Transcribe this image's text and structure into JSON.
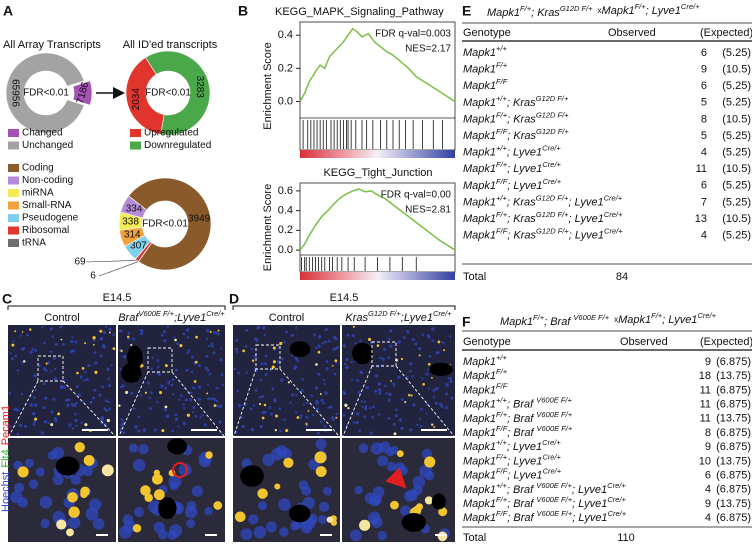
{
  "panel_labels": [
    "A",
    "B",
    "C",
    "D",
    "E",
    "F"
  ],
  "chart_data": [
    {
      "type": "pie",
      "title": "All Array Transcripts",
      "center_label": "FDR<0.01",
      "categories": [
        "Changed",
        "Unchanged"
      ],
      "values": [
        7186,
        65956
      ],
      "colors": [
        "#a552b5",
        "#a3a3a3"
      ]
    },
    {
      "type": "pie",
      "title": "All ID'ed transcripts",
      "center_label": "FDR<0.01",
      "categories": [
        "Upregulated",
        "Downregulated"
      ],
      "values": [
        2034,
        3283
      ],
      "colors": [
        "#e0342c",
        "#4aa84a"
      ]
    },
    {
      "type": "pie",
      "center_label": "FDR<0.01",
      "categories": [
        "Coding",
        "Non-coding",
        "miRNA",
        "Small-RNA",
        "Pseudogene",
        "Ribosomal",
        "tRNA"
      ],
      "values": [
        3949,
        334,
        338,
        314,
        307,
        69,
        6
      ],
      "colors": [
        "#8b5a2b",
        "#b58ad6",
        "#f3ea58",
        "#f2a23a",
        "#7ed0ec",
        "#e2372f",
        "#6d6d6d"
      ]
    },
    {
      "type": "line",
      "title": "KEGG_MAPK_Signaling_Pathway",
      "y_label": "Enrichment Score",
      "annotations": [
        "FDR q-val=0.003",
        "NES=2.17"
      ],
      "x": [
        0,
        0.03,
        0.06,
        0.1,
        0.13,
        0.16,
        0.19,
        0.22,
        0.25,
        0.28,
        0.31,
        0.34,
        0.37,
        0.4,
        0.44,
        0.48,
        0.52,
        0.56,
        0.6,
        0.65,
        0.7,
        0.75,
        0.8,
        0.85,
        0.9,
        0.95,
        1
      ],
      "values": [
        0,
        0.05,
        0.12,
        0.18,
        0.22,
        0.2,
        0.27,
        0.3,
        0.33,
        0.36,
        0.4,
        0.44,
        0.42,
        0.39,
        0.41,
        0.36,
        0.33,
        0.3,
        0.28,
        0.24,
        0.2,
        0.15,
        0.12,
        0.09,
        0.06,
        0.03,
        0
      ],
      "color": "#78c043",
      "hits": [
        0.02,
        0.05,
        0.07,
        0.09,
        0.11,
        0.13,
        0.15,
        0.17,
        0.2,
        0.22,
        0.24,
        0.26,
        0.28,
        0.3,
        0.31,
        0.33,
        0.36,
        0.4,
        0.43,
        0.47,
        0.52,
        0.56,
        0.6,
        0.64,
        0.68,
        0.73,
        0.79,
        0.86,
        0.92
      ],
      "xlim": [
        0,
        1
      ],
      "ylim": [
        -0.1,
        0.48
      ],
      "yticks": [
        {
          "value": 0,
          "label": "0.0"
        },
        0.2,
        0.4
      ]
    },
    {
      "type": "line",
      "title": "KEGG_Tight_Junction",
      "y_label": "Enrichment Score",
      "annotations": [
        "FDR q-val=0.00",
        "NES=2.81"
      ],
      "x": [
        0,
        0.03,
        0.06,
        0.1,
        0.14,
        0.18,
        0.22,
        0.26,
        0.3,
        0.34,
        0.38,
        0.42,
        0.46,
        0.5,
        0.55,
        0.6,
        0.65,
        0.7,
        0.75,
        0.8,
        0.85,
        0.9,
        0.95,
        1
      ],
      "values": [
        0,
        0.06,
        0.15,
        0.25,
        0.34,
        0.4,
        0.47,
        0.53,
        0.57,
        0.6,
        0.62,
        0.59,
        0.6,
        0.56,
        0.52,
        0.46,
        0.4,
        0.34,
        0.28,
        0.22,
        0.16,
        0.1,
        0.05,
        0
      ],
      "color": "#78c043",
      "hits": [
        0.01,
        0.03,
        0.04,
        0.06,
        0.08,
        0.1,
        0.12,
        0.14,
        0.16,
        0.19,
        0.21,
        0.24,
        0.27,
        0.31,
        0.35,
        0.42,
        0.5,
        0.58,
        0.66,
        0.75
      ],
      "xlim": [
        0,
        1
      ],
      "ylim": [
        -0.05,
        0.68
      ],
      "yticks": [
        {
          "value": 0,
          "label": "0.0"
        },
        0.2,
        0.4,
        0.6
      ]
    }
  ],
  "image_panels": [
    {
      "stage": "E14.5",
      "columns": [
        [
          [
            "Control"
          ]
        ],
        [
          [
            "Braf",
            "V600E F/+"
          ],
          [
            ";Lyve1",
            "Cre/+"
          ]
        ]
      ]
    },
    {
      "stage": "E14.5",
      "columns": [
        [
          [
            "Control"
          ]
        ],
        [
          [
            "Kras",
            "G12D F/+"
          ],
          [
            ";Lyve1",
            "Cre/+"
          ]
        ]
      ]
    }
  ],
  "stain_label": [
    {
      "text": "Hoechst",
      "color": "#3344dd"
    },
    {
      "text": "Flt4",
      "color": "#33aa33"
    },
    {
      "text": "Pecam1",
      "color": "#dd2222"
    }
  ],
  "tables": [
    {
      "cross": {
        "female": [
          [
            "Mapk1",
            "F/+"
          ],
          [
            "; Kras",
            "G12D F/+"
          ]
        ],
        "symbol": "x",
        "male": [
          [
            "Mapk1",
            "F/+"
          ],
          [
            "; Lyve1",
            "Cre/+"
          ]
        ]
      },
      "columns": [
        "Genotype",
        "Observed",
        "(Expected)"
      ],
      "rows": [
        {
          "genotype": [
            [
              "Mapk1",
              "+/+"
            ]
          ],
          "observed": 6,
          "expected": "(5.25)"
        },
        {
          "genotype": [
            [
              "Mapk1",
              "F/+"
            ]
          ],
          "observed": 9,
          "expected": "(10.5)"
        },
        {
          "genotype": [
            [
              "Mapk1",
              "F/F"
            ]
          ],
          "observed": 6,
          "expected": "(5.25)"
        },
        {
          "genotype": [
            [
              "Mapk1",
              "+/+"
            ],
            [
              "; Kras",
              "G12D F/+"
            ]
          ],
          "observed": 5,
          "expected": "(5.25)"
        },
        {
          "genotype": [
            [
              "Mapk1",
              "F/+"
            ],
            [
              "; Kras",
              "G12D F/+"
            ]
          ],
          "observed": 8,
          "expected": "(10.5)"
        },
        {
          "genotype": [
            [
              "Mapk1",
              "F/F"
            ],
            [
              "; Kras",
              "G12D F/+"
            ]
          ],
          "observed": 5,
          "expected": "(5.25)"
        },
        {
          "genotype": [
            [
              "Mapk1",
              "+/+"
            ],
            [
              "; Lyve1",
              "Cre/+"
            ]
          ],
          "observed": 4,
          "expected": "(5.25)"
        },
        {
          "genotype": [
            [
              "Mapk1",
              "F/+"
            ],
            [
              "; Lyve1",
              "Cre/+"
            ]
          ],
          "observed": 11,
          "expected": "(10.5)"
        },
        {
          "genotype": [
            [
              "Mapk1",
              "F/F"
            ],
            [
              "; Lyve1",
              "Cre/+"
            ]
          ],
          "observed": 6,
          "expected": "(5.25)"
        },
        {
          "genotype": [
            [
              "Mapk1",
              "+/+"
            ],
            [
              "; Kras",
              "G12D F/+"
            ],
            [
              "; Lyve1",
              "Cre/+"
            ]
          ],
          "observed": 7,
          "expected": "(5.25)"
        },
        {
          "genotype": [
            [
              "Mapk1",
              "F/+"
            ],
            [
              "; Kras",
              "G12D F/+"
            ],
            [
              "; Lyve1",
              "Cre/+"
            ]
          ],
          "observed": 13,
          "expected": "(10.5)"
        },
        {
          "genotype": [
            [
              "Mapk1",
              "F/F"
            ],
            [
              "; Kras",
              "G12D F/+"
            ],
            [
              "; Lyve1",
              "Cre/+"
            ]
          ],
          "observed": 4,
          "expected": "(5.25)"
        }
      ],
      "total": {
        "label": "Total",
        "observed": 84
      }
    },
    {
      "cross": {
        "female": [
          [
            "Mapk1",
            "F/+"
          ],
          [
            "; Braf ",
            "V600E F/+"
          ]
        ],
        "symbol": "x",
        "male": [
          [
            "Mapk1",
            "F/+"
          ],
          [
            "; Lyve1",
            "Cre/+"
          ]
        ]
      },
      "columns": [
        "Genotype",
        "Observed",
        "(Expected)"
      ],
      "rows": [
        {
          "genotype": [
            [
              "Mapk1",
              "+/+"
            ]
          ],
          "observed": 9,
          "expected": "(6.875)"
        },
        {
          "genotype": [
            [
              "Mapk1",
              "F/+"
            ]
          ],
          "observed": 18,
          "expected": "(13.75)"
        },
        {
          "genotype": [
            [
              "Mapk1",
              "F/F"
            ]
          ],
          "observed": 11,
          "expected": "(6.875)"
        },
        {
          "genotype": [
            [
              "Mapk1",
              "+/+"
            ],
            [
              "; Braf ",
              "V600E F/+"
            ]
          ],
          "observed": 11,
          "expected": "(6.875)"
        },
        {
          "genotype": [
            [
              "Mapk1",
              "F/+"
            ],
            [
              "; Braf ",
              "V600E F/+"
            ]
          ],
          "observed": 11,
          "expected": "(13.75)"
        },
        {
          "genotype": [
            [
              "Mapk1",
              "F/F"
            ],
            [
              "; Braf ",
              "V600E F/+"
            ]
          ],
          "observed": 8,
          "expected": "(6.875)"
        },
        {
          "genotype": [
            [
              "Mapk1",
              "+/+"
            ],
            [
              "; Lyve1",
              "Cre/+"
            ]
          ],
          "observed": 9,
          "expected": "(6.875)"
        },
        {
          "genotype": [
            [
              "Mapk1",
              "F/+"
            ],
            [
              "; Lyve1",
              "Cre/+"
            ]
          ],
          "observed": 10,
          "expected": "(13.75)"
        },
        {
          "genotype": [
            [
              "Mapk1",
              "F/F"
            ],
            [
              "; Lyve1",
              "Cre/+"
            ]
          ],
          "observed": 6,
          "expected": "(6.875)"
        },
        {
          "genotype": [
            [
              "Mapk1",
              "+/+"
            ],
            [
              "; Braf ",
              "V600E F/+"
            ],
            [
              "; Lyve1",
              "Cre/+"
            ]
          ],
          "observed": 4,
          "expected": "(6.875)"
        },
        {
          "genotype": [
            [
              "Mapk1",
              "F/+"
            ],
            [
              "; Braf ",
              "V600E F/+"
            ],
            [
              "; Lyve1",
              "Cre/+"
            ]
          ],
          "observed": 9,
          "expected": "(13.75)"
        },
        {
          "genotype": [
            [
              "Mapk1",
              "F/F"
            ],
            [
              "; Braf ",
              "V600E F/+"
            ],
            [
              "; Lyve1",
              "Cre/+"
            ]
          ],
          "observed": 4,
          "expected": "(6.875)"
        }
      ],
      "total": {
        "label": "Total",
        "observed": 110
      }
    }
  ]
}
